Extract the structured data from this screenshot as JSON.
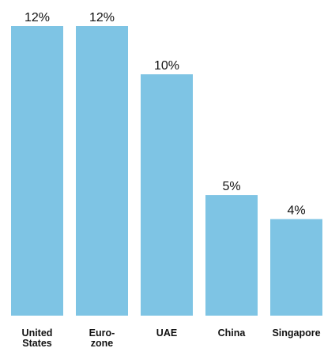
{
  "chart_data": {
    "type": "bar",
    "title": "",
    "xlabel": "",
    "ylabel": "",
    "unit": "%",
    "categories": [
      [
        "United",
        "States"
      ],
      [
        "Euro-",
        "zone"
      ],
      [
        "UAE"
      ],
      [
        "China"
      ],
      [
        "Singapore"
      ]
    ],
    "values": [
      12,
      12,
      10,
      5,
      4
    ],
    "value_labels": [
      "12%",
      "12%",
      "10%",
      "5%",
      "4%"
    ],
    "ylim": [
      0,
      12
    ],
    "grid": false,
    "bar_color": "#7ec4e4"
  }
}
